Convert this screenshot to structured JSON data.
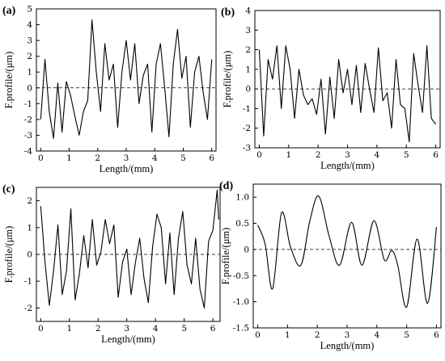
{
  "chart_data": [
    {
      "type": "line",
      "panel": "(a)",
      "xlabel": "Length/(mm)",
      "ylabel": "F.profile/(μm)",
      "xlim": [
        -0.15,
        6.15
      ],
      "ylim": [
        -4,
        5
      ],
      "xticks": [
        0,
        1,
        2,
        3,
        4,
        5,
        6
      ],
      "yticks": [
        -4,
        -3,
        -2,
        -1,
        0,
        1,
        2,
        3,
        4,
        5
      ],
      "baseline": 0,
      "series": [
        {
          "x": [
            0,
            0.15,
            0.3,
            0.45,
            0.6,
            0.75,
            0.9,
            1.05,
            1.2,
            1.35,
            1.5,
            1.65,
            1.8,
            1.95,
            2.1,
            2.25,
            2.4,
            2.55,
            2.7,
            2.85,
            3.0,
            3.15,
            3.3,
            3.45,
            3.6,
            3.75,
            3.9,
            4.05,
            4.2,
            4.35,
            4.5,
            4.65,
            4.8,
            4.95,
            5.1,
            5.25,
            5.4,
            5.55,
            5.7,
            5.85,
            6.0
          ],
          "y": [
            -2.0,
            1.8,
            -1.5,
            -3.2,
            0.3,
            -2.8,
            0.4,
            -0.5,
            -1.8,
            -3.0,
            -1.5,
            -0.8,
            4.3,
            1.0,
            -1.5,
            2.8,
            0.5,
            1.5,
            -2.5,
            1.0,
            3.0,
            0.5,
            2.8,
            -1.0,
            0.8,
            1.5,
            -2.8,
            1.5,
            2.8,
            0.0,
            -3.1,
            1.5,
            3.7,
            0.6,
            2.0,
            -2.5,
            1.0,
            2.0,
            -0.3,
            -2.0,
            1.8
          ]
        }
      ]
    },
    {
      "type": "line",
      "panel": "(b)",
      "xlabel": "Length/(mm)",
      "ylabel": "F.profile/(μm)",
      "xlim": [
        -0.15,
        6.15
      ],
      "ylim": [
        -3,
        4
      ],
      "xticks": [
        0,
        1,
        2,
        3,
        4,
        5,
        6
      ],
      "yticks": [
        -3,
        -2,
        -1,
        0,
        1,
        2,
        3,
        4
      ],
      "baseline": 0,
      "series": [
        {
          "x": [
            0,
            0.15,
            0.3,
            0.45,
            0.6,
            0.75,
            0.9,
            1.05,
            1.2,
            1.35,
            1.5,
            1.65,
            1.8,
            1.95,
            2.1,
            2.25,
            2.4,
            2.55,
            2.7,
            2.85,
            3.0,
            3.15,
            3.3,
            3.45,
            3.6,
            3.75,
            3.9,
            4.05,
            4.2,
            4.35,
            4.5,
            4.65,
            4.8,
            4.95,
            5.1,
            5.25,
            5.4,
            5.55,
            5.7,
            5.85,
            6.0
          ],
          "y": [
            2.0,
            -2.4,
            1.5,
            0.5,
            2.2,
            -1.0,
            2.2,
            1.0,
            -1.5,
            1.0,
            -0.3,
            -0.8,
            -0.5,
            -1.3,
            0.5,
            -2.3,
            0.6,
            -1.5,
            1.5,
            -0.2,
            1.0,
            -0.8,
            1.2,
            -1.2,
            1.3,
            0.0,
            -1.2,
            2.1,
            -0.6,
            -0.2,
            -2.0,
            1.5,
            -0.8,
            -1.0,
            -2.7,
            1.8,
            0.2,
            -1.2,
            2.2,
            -1.5,
            -1.8
          ]
        }
      ]
    },
    {
      "type": "line",
      "panel": "(c)",
      "xlabel": "Length/(mm)",
      "ylabel": "F.profile/(μm)",
      "xlim": [
        -0.15,
        6.25
      ],
      "ylim": [
        -2.5,
        2.5
      ],
      "xticks": [
        0,
        1,
        2,
        3,
        4,
        5,
        6
      ],
      "yticks": [
        -2,
        -1,
        0,
        1,
        2
      ],
      "baseline": 0,
      "series": [
        {
          "x": [
            0,
            0.15,
            0.3,
            0.45,
            0.6,
            0.75,
            0.9,
            1.05,
            1.2,
            1.35,
            1.5,
            1.65,
            1.8,
            1.95,
            2.1,
            2.25,
            2.4,
            2.55,
            2.7,
            2.85,
            3.0,
            3.15,
            3.3,
            3.45,
            3.6,
            3.75,
            3.9,
            4.05,
            4.2,
            4.35,
            4.5,
            4.65,
            4.8,
            4.95,
            5.1,
            5.25,
            5.4,
            5.55,
            5.7,
            5.85,
            6.0,
            6.15,
            6.2
          ],
          "y": [
            1.8,
            -0.3,
            -1.9,
            -0.6,
            1.1,
            -1.5,
            -0.6,
            1.7,
            -1.7,
            -0.7,
            0.7,
            -0.5,
            1.3,
            -0.4,
            0.1,
            1.3,
            0.4,
            1.1,
            -1.6,
            -0.3,
            0.2,
            -1.5,
            -0.3,
            0.6,
            -0.9,
            -1.8,
            0.3,
            1.5,
            1.0,
            -1.1,
            0.8,
            -1.5,
            0.6,
            1.6,
            -0.4,
            -1.1,
            0.6,
            -1.3,
            -2.0,
            0.5,
            0.9,
            2.4,
            1.3
          ]
        }
      ]
    },
    {
      "type": "line",
      "panel": "(d)",
      "xlabel": "Length/(mm)",
      "ylabel": "F.profile/(μm)",
      "xlim": [
        -0.15,
        6.15
      ],
      "ylim": [
        -1.5,
        1.25
      ],
      "xticks": [
        0,
        1,
        2,
        3,
        4,
        5,
        6
      ],
      "yticks": [
        -1.5,
        -1.0,
        -0.5,
        0.0,
        0.5,
        1.0
      ],
      "yticklabels": [
        "-1.5",
        "-1.0",
        "-0.5",
        "0",
        "0.5",
        "1.0"
      ],
      "baseline": 0,
      "smooth": true,
      "series": [
        {
          "x": [
            0,
            0.25,
            0.5,
            0.8,
            1.1,
            1.45,
            1.75,
            2.05,
            2.4,
            2.75,
            3.15,
            3.5,
            3.9,
            4.25,
            4.5,
            4.7,
            5.0,
            5.35,
            5.7,
            6.0
          ],
          "y": [
            0.47,
            0.1,
            -0.75,
            0.7,
            0.05,
            -0.3,
            0.55,
            1.02,
            0.25,
            -0.3,
            0.52,
            -0.3,
            0.55,
            -0.2,
            -0.02,
            -0.3,
            -1.1,
            0.2,
            -1.03,
            0.43
          ]
        }
      ]
    }
  ]
}
